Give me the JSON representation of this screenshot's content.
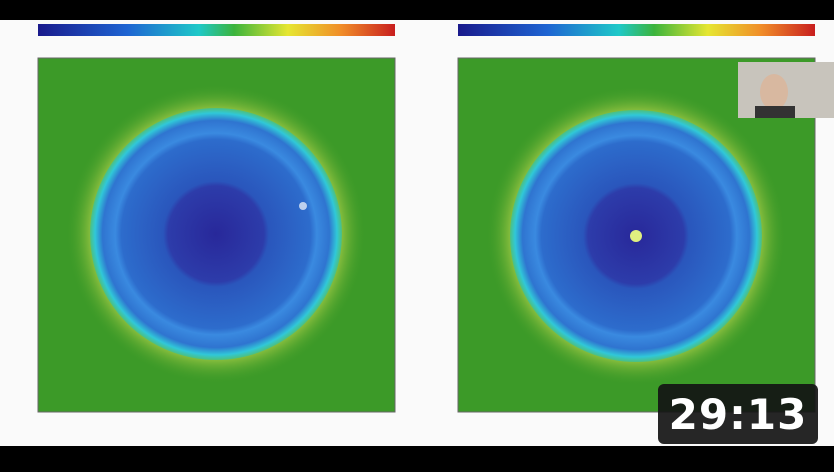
{
  "duration": "29:13"
}
